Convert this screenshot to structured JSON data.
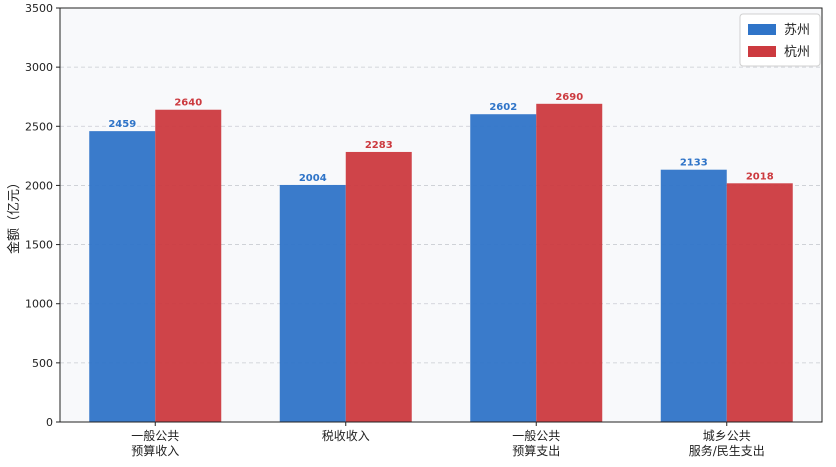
{
  "chart_data": {
    "type": "bar",
    "categories": [
      [
        "一般公共",
        "预算收入"
      ],
      [
        "税收收入"
      ],
      [
        "一般公共",
        "预算支出"
      ],
      [
        "城乡公共",
        "服务/民生支出"
      ]
    ],
    "series": [
      {
        "name": "苏州",
        "color": "#2f74c8",
        "values": [
          2459,
          2004,
          2602,
          2133
        ]
      },
      {
        "name": "杭州",
        "color": "#cc3a3f",
        "values": [
          2640,
          2283,
          2690,
          2018
        ]
      }
    ],
    "xlabel": "",
    "ylabel": "金额（亿元）",
    "ylim": [
      0,
      3500
    ],
    "yticks": [
      0,
      500,
      1000,
      1500,
      2000,
      2500,
      3000,
      3500
    ],
    "grid": true,
    "legend": "top-right",
    "data_labels": true
  }
}
